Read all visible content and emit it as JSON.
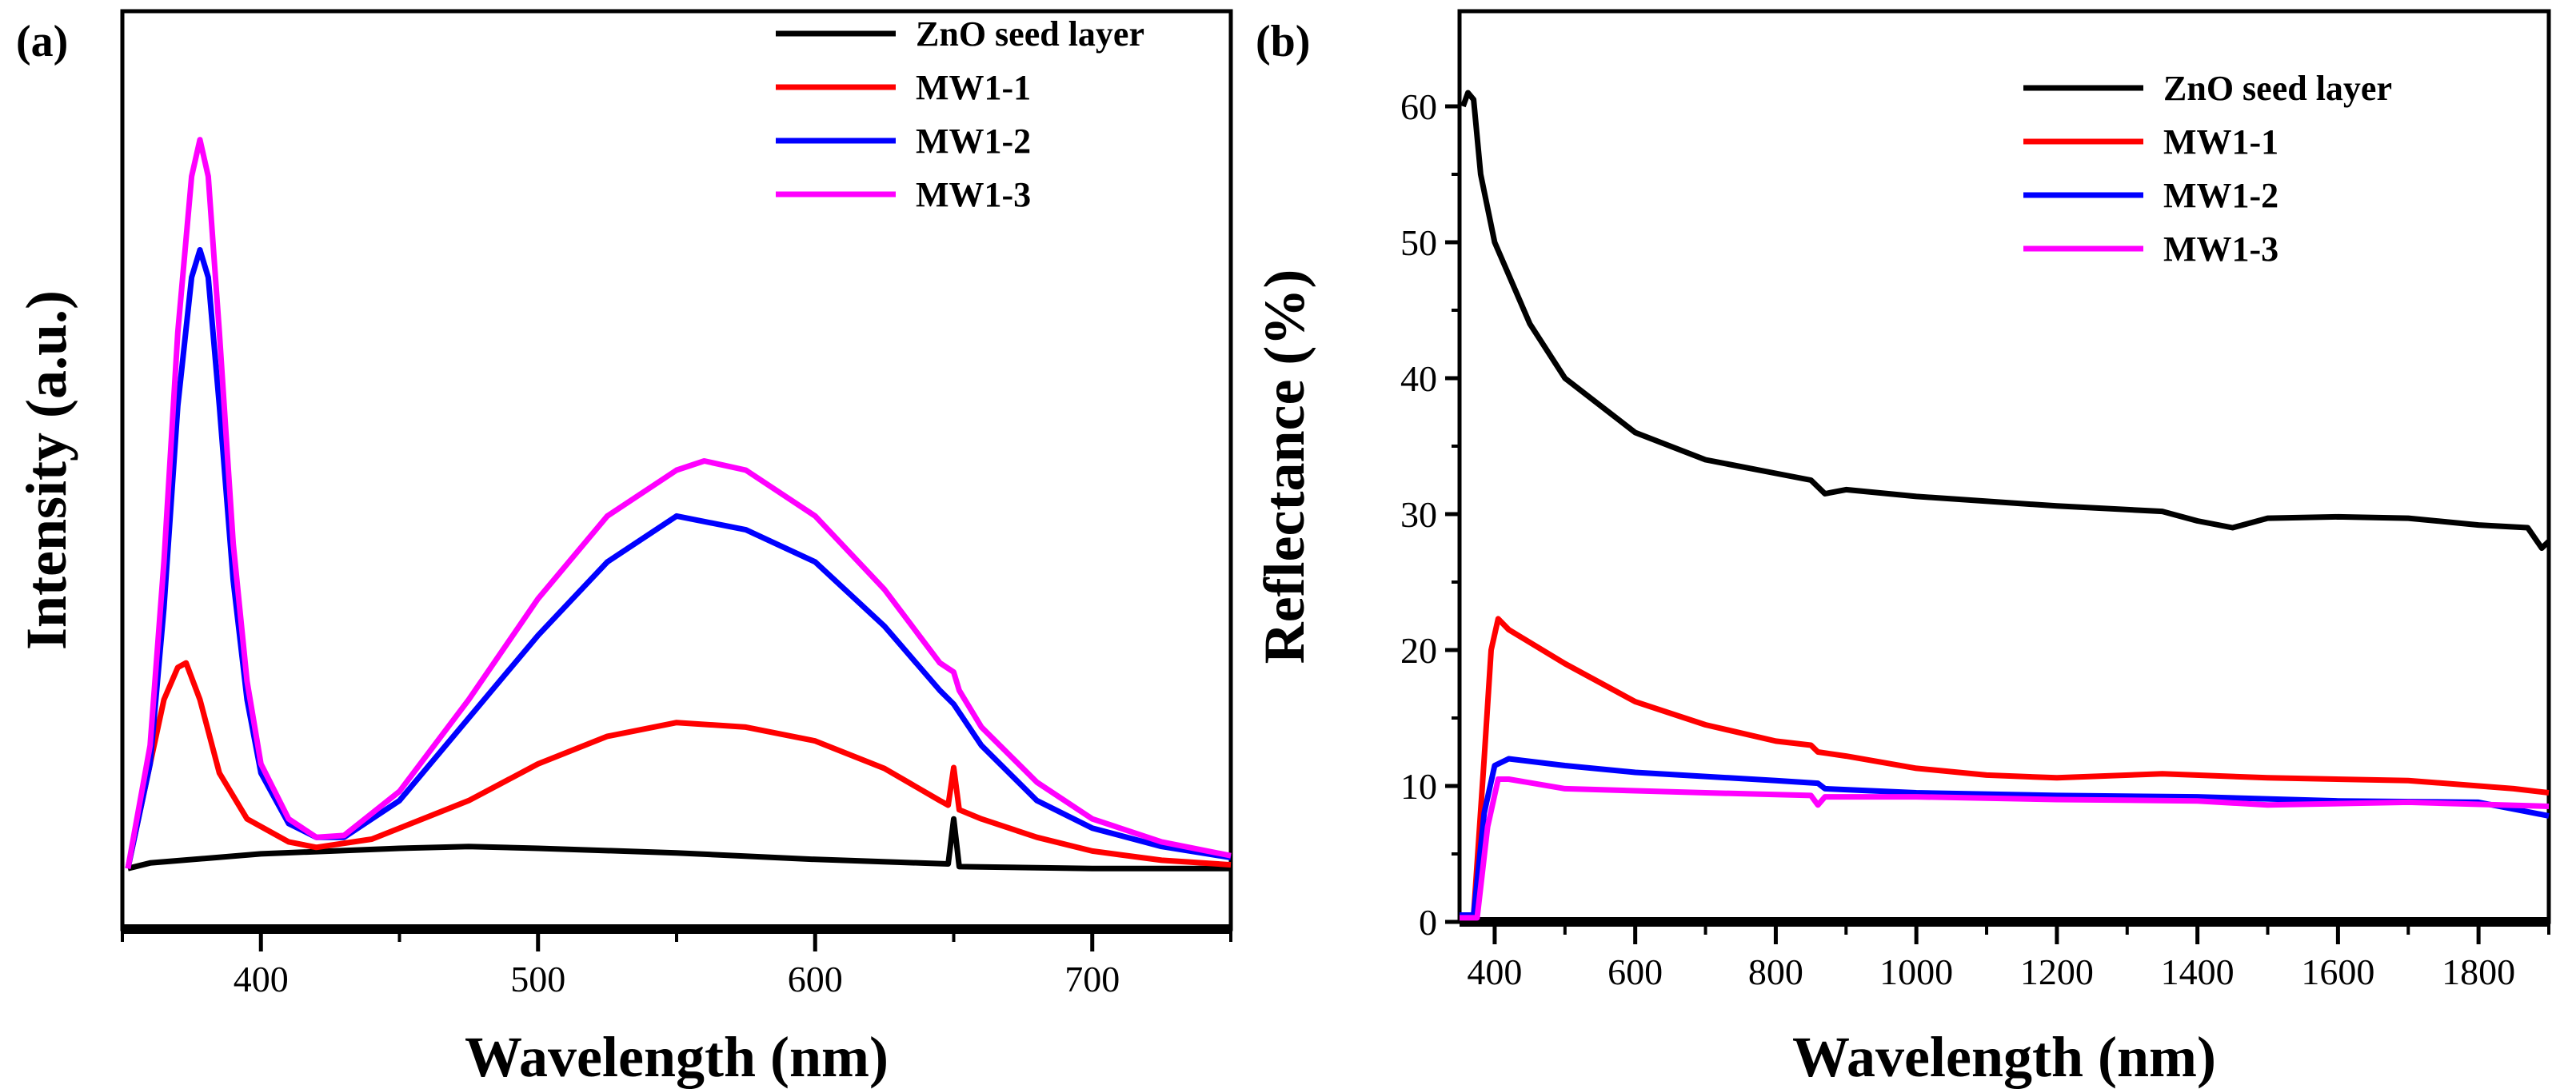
{
  "chart_data": [
    {
      "panel_label": "(a)",
      "type": "line",
      "xlabel": "Wavelength (nm)",
      "ylabel": "Intensity (a.u.)",
      "xlim": [
        350,
        750
      ],
      "ylim": [
        0,
        100
      ],
      "xticks": [
        400,
        500,
        600,
        700
      ],
      "yticks": [],
      "grid": false,
      "legend_position": "top-right",
      "series": [
        {
          "name": "ZnO seed layer",
          "color": "#000000",
          "x": [
            352,
            360,
            400,
            450,
            475,
            500,
            550,
            600,
            648,
            650,
            652,
            700,
            750
          ],
          "y": [
            6.6,
            7.2,
            8.2,
            8.8,
            9,
            8.8,
            8.3,
            7.6,
            7.1,
            12,
            6.8,
            6.6,
            6.6
          ]
        },
        {
          "name": "MW1-1",
          "color": "#ff0000",
          "x": [
            352,
            360,
            365,
            370,
            373,
            378,
            385,
            395,
            410,
            420,
            440,
            475,
            500,
            525,
            550,
            575,
            600,
            625,
            645,
            648,
            650,
            652,
            660,
            680,
            700,
            725,
            750
          ],
          "y": [
            6.6,
            18,
            25,
            28.5,
            29,
            25,
            17,
            12,
            9.5,
            8.9,
            9.8,
            14,
            18,
            21,
            22.5,
            22,
            20.5,
            17.5,
            14,
            13.5,
            17.6,
            13,
            12,
            10,
            8.5,
            7.5,
            7
          ]
        },
        {
          "name": "MW1-2",
          "color": "#0000ff",
          "x": [
            352,
            360,
            365,
            370,
            375,
            378,
            381,
            385,
            390,
            395,
            400,
            410,
            420,
            430,
            450,
            475,
            500,
            525,
            550,
            575,
            600,
            625,
            645,
            650,
            660,
            680,
            700,
            725,
            750
          ],
          "y": [
            6.6,
            18,
            35,
            57,
            71,
            74,
            71,
            57,
            38,
            25,
            17,
            11.5,
            10,
            10,
            14,
            23,
            32,
            40,
            45,
            43.5,
            40,
            33,
            26,
            24.5,
            20,
            14,
            11,
            9,
            7.8
          ]
        },
        {
          "name": "MW1-3",
          "color": "#ff00ff",
          "x": [
            352,
            360,
            365,
            370,
            375,
            378,
            381,
            385,
            390,
            395,
            400,
            410,
            420,
            430,
            450,
            475,
            500,
            525,
            550,
            560,
            575,
            600,
            625,
            645,
            650,
            652,
            660,
            680,
            700,
            725,
            750
          ],
          "y": [
            6.6,
            20,
            40,
            65,
            82,
            86,
            82,
            65,
            42,
            27,
            18,
            12,
            10,
            10.2,
            15,
            25,
            36,
            45,
            50,
            51,
            50,
            45,
            37,
            29,
            28,
            26,
            22,
            16,
            12,
            9.5,
            8
          ]
        }
      ]
    },
    {
      "panel_label": "(b)",
      "type": "line",
      "xlabel": "Wavelength (nm)",
      "ylabel": "Reflectance (%)",
      "xlim": [
        350,
        1900
      ],
      "ylim": [
        0,
        67
      ],
      "xticks": [
        400,
        600,
        800,
        1000,
        1200,
        1400,
        1600,
        1800
      ],
      "yticks": [
        0,
        10,
        20,
        30,
        40,
        50,
        60
      ],
      "grid": false,
      "legend_position": "top-right",
      "series": [
        {
          "name": "ZnO seed layer",
          "color": "#000000",
          "x": [
            355,
            362,
            370,
            380,
            400,
            450,
            500,
            600,
            700,
            800,
            850,
            870,
            900,
            1000,
            1200,
            1350,
            1400,
            1450,
            1500,
            1600,
            1700,
            1800,
            1870,
            1890,
            1900
          ],
          "y": [
            60,
            61,
            60.5,
            55,
            50,
            44,
            40,
            36,
            34,
            33,
            32.5,
            31.5,
            31.8,
            31.3,
            30.6,
            30.2,
            29.5,
            29,
            29.7,
            29.8,
            29.7,
            29.2,
            29,
            27.5,
            28
          ]
        },
        {
          "name": "MW1-1",
          "color": "#ff0000",
          "x": [
            350,
            370,
            385,
            395,
            405,
            420,
            500,
            600,
            700,
            800,
            850,
            860,
            900,
            1000,
            1100,
            1200,
            1350,
            1500,
            1700,
            1850,
            1900
          ],
          "y": [
            0.5,
            0.5,
            12,
            20,
            22.3,
            21.5,
            19,
            16.2,
            14.5,
            13.3,
            13,
            12.5,
            12.2,
            11.3,
            10.8,
            10.6,
            10.9,
            10.6,
            10.4,
            9.8,
            9.5
          ]
        },
        {
          "name": "MW1-2",
          "color": "#0000ff",
          "x": [
            350,
            370,
            385,
            400,
            420,
            500,
            600,
            800,
            860,
            870,
            1000,
            1200,
            1400,
            1600,
            1800,
            1900
          ],
          "y": [
            0.5,
            0.5,
            8,
            11.5,
            12,
            11.5,
            11,
            10.4,
            10.2,
            9.8,
            9.5,
            9.3,
            9.2,
            8.9,
            8.8,
            7.8
          ]
        },
        {
          "name": "MW1-3",
          "color": "#ff00ff",
          "x": [
            350,
            375,
            390,
            405,
            420,
            500,
            700,
            850,
            860,
            870,
            1000,
            1200,
            1400,
            1500,
            1700,
            1900
          ],
          "y": [
            0.3,
            0.3,
            7,
            10.5,
            10.5,
            9.8,
            9.5,
            9.3,
            8.6,
            9.2,
            9.2,
            9,
            8.9,
            8.6,
            8.8,
            8.5
          ]
        }
      ]
    }
  ]
}
